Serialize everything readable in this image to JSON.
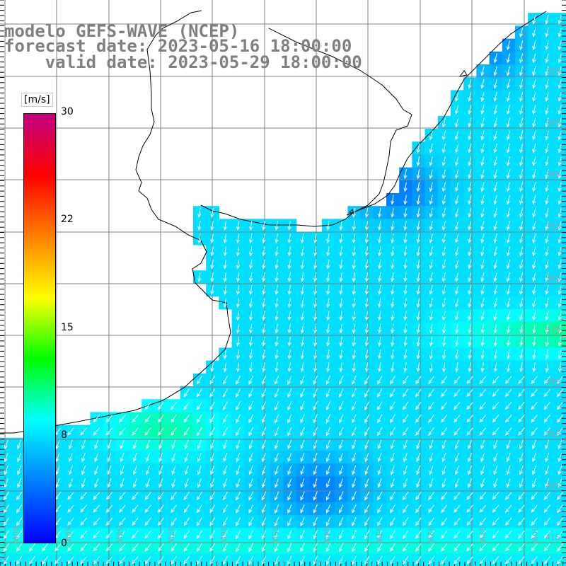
{
  "title": {
    "line1": "modelo GEFS-WAVE (NCEP)",
    "line2": "forecast date: 2023-05-16 18:00:00",
    "line3": "valid date: 2023-05-29 18:00:00"
  },
  "colorbar": {
    "unit": "[m/s]",
    "ticks": [
      "30",
      "22",
      "15",
      "8",
      "0"
    ],
    "tick_values": [
      30,
      22,
      15,
      8,
      0
    ],
    "min": 0,
    "max": 30,
    "colors": [
      "#0000ff",
      "#0080ff",
      "#00ffff",
      "#00ff00",
      "#ffff00",
      "#ff8000",
      "#ff0000",
      "#c00080"
    ]
  },
  "map": {
    "variable": "wind speed and direction",
    "lat_labels": [
      "32S",
      "33S",
      "34S",
      "35S",
      "36S",
      "37S",
      "38S",
      "39S",
      "40S",
      "41S"
    ],
    "lon_labels": [
      "60W",
      "59W",
      "58W",
      "57W",
      "56W",
      "55W",
      "54W",
      "53W",
      "52W",
      "51W",
      "50W"
    ],
    "land_color": "#ffffff",
    "coast_color": "#000000",
    "grid_color": "#808080",
    "arrow_color": "#ffffff"
  }
}
